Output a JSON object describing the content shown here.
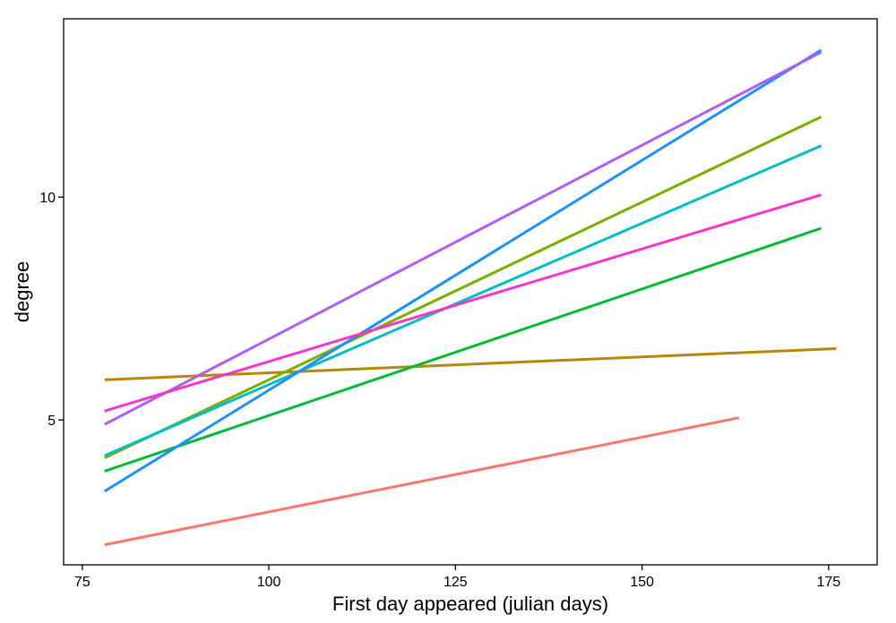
{
  "chart_data": {
    "type": "line",
    "title": "",
    "xlabel": "First day appeared (julian days)",
    "ylabel": "degree",
    "xlim": [
      72.5,
      181.5
    ],
    "ylim": [
      1.75,
      14.0
    ],
    "xticks": [
      75,
      100,
      125,
      150,
      175
    ],
    "yticks": [
      5,
      10
    ],
    "grid": false,
    "legend": "none",
    "series": [
      {
        "color": "#F8766D",
        "x": [
          78,
          163
        ],
        "y": [
          2.2,
          5.05
        ]
      },
      {
        "color": "#B8860B",
        "x": [
          78,
          176
        ],
        "y": [
          5.9,
          6.6
        ]
      },
      {
        "color": "#7CAE00",
        "x": [
          78,
          174
        ],
        "y": [
          4.15,
          11.8
        ]
      },
      {
        "color": "#00BA38",
        "x": [
          78,
          174
        ],
        "y": [
          3.85,
          9.3
        ]
      },
      {
        "color": "#00BFC4",
        "x": [
          78,
          174
        ],
        "y": [
          4.2,
          11.15
        ]
      },
      {
        "color": "#1E90FF",
        "x": [
          78,
          174
        ],
        "y": [
          3.4,
          13.3
        ]
      },
      {
        "color": "#B15CF8",
        "x": [
          78,
          174
        ],
        "y": [
          4.9,
          13.25
        ]
      },
      {
        "color": "#F536C8",
        "x": [
          78,
          174
        ],
        "y": [
          5.2,
          10.05
        ]
      }
    ]
  }
}
